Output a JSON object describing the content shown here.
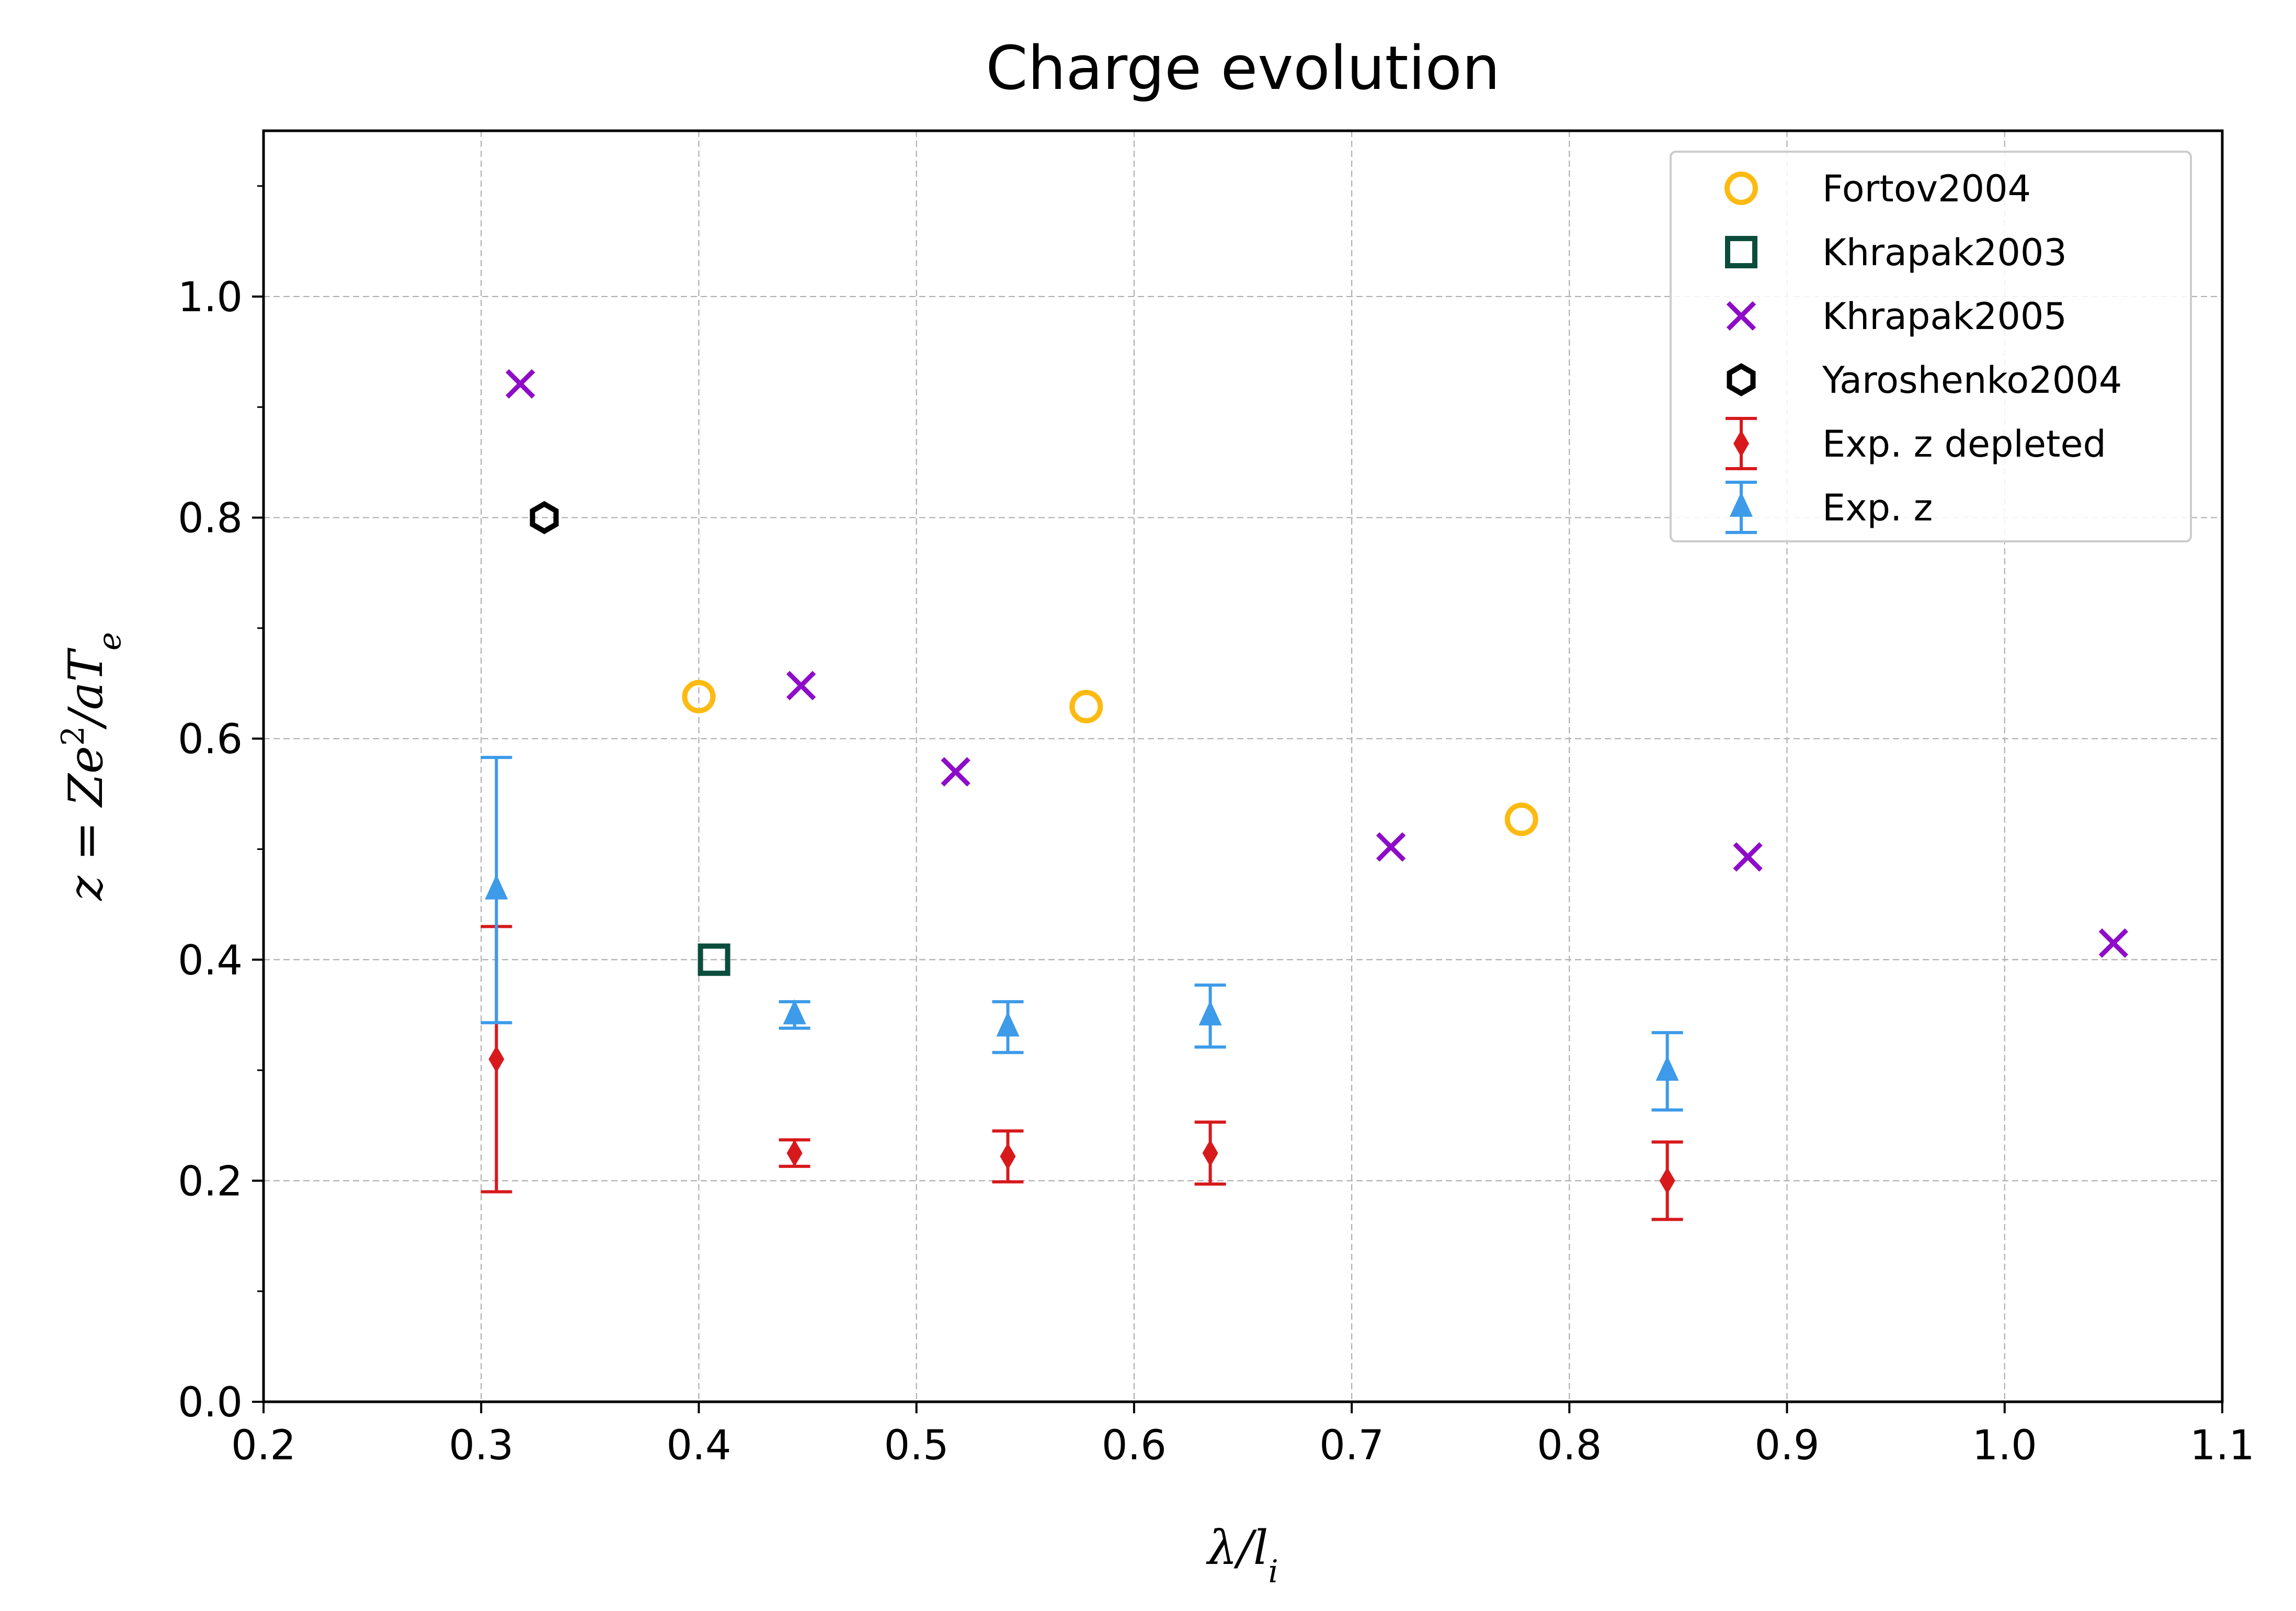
{
  "chart_data": {
    "type": "scatter",
    "title": "Charge evolution",
    "xlabel": "λ/l_i",
    "ylabel": "z = Ze²/aT_e",
    "xlim": [
      0.2,
      1.1
    ],
    "ylim": [
      0.0,
      1.15
    ],
    "xticks": [
      "0.2",
      "0.3",
      "0.4",
      "0.5",
      "0.6",
      "0.7",
      "0.8",
      "0.9",
      "1.0",
      "1.1"
    ],
    "yticks": [
      "0.0",
      "0.2",
      "0.4",
      "0.6",
      "0.8",
      "1.0"
    ],
    "grid": true,
    "legend_position": "top-right",
    "series": [
      {
        "name": "Fortov2004",
        "marker": "circle-open",
        "color": "#FDBA12",
        "points": [
          {
            "x": 0.4,
            "y": 0.638
          },
          {
            "x": 0.578,
            "y": 0.629
          },
          {
            "x": 0.778,
            "y": 0.527
          }
        ]
      },
      {
        "name": "Khrapak2003",
        "marker": "square-open",
        "color": "#0B4D3C",
        "points": [
          {
            "x": 0.407,
            "y": 0.4
          }
        ]
      },
      {
        "name": "Khrapak2005",
        "marker": "x",
        "color": "#8E0CC8",
        "points": [
          {
            "x": 0.318,
            "y": 0.921
          },
          {
            "x": 0.447,
            "y": 0.648
          },
          {
            "x": 0.518,
            "y": 0.57
          },
          {
            "x": 0.718,
            "y": 0.502
          },
          {
            "x": 0.882,
            "y": 0.493
          },
          {
            "x": 1.05,
            "y": 0.415
          }
        ]
      },
      {
        "name": "Yaroshenko2004",
        "marker": "hexagon-open",
        "color": "#000000",
        "points": [
          {
            "x": 0.329,
            "y": 0.8
          }
        ]
      },
      {
        "name": "Exp. z depleted",
        "marker": "diamond",
        "color": "#D7191C",
        "points": [
          {
            "x": 0.307,
            "y": 0.31,
            "err": 0.12
          },
          {
            "x": 0.444,
            "y": 0.225,
            "err": 0.012
          },
          {
            "x": 0.542,
            "y": 0.222,
            "err": 0.023
          },
          {
            "x": 0.635,
            "y": 0.225,
            "err": 0.028
          },
          {
            "x": 0.845,
            "y": 0.2,
            "err": 0.035
          }
        ]
      },
      {
        "name": "Exp. z",
        "marker": "triangle",
        "color": "#3D9BE9",
        "points": [
          {
            "x": 0.307,
            "y": 0.463,
            "err": 0.12
          },
          {
            "x": 0.444,
            "y": 0.35,
            "err": 0.012
          },
          {
            "x": 0.542,
            "y": 0.339,
            "err": 0.023
          },
          {
            "x": 0.635,
            "y": 0.349,
            "err": 0.028
          },
          {
            "x": 0.845,
            "y": 0.299,
            "err": 0.035
          }
        ]
      }
    ]
  }
}
